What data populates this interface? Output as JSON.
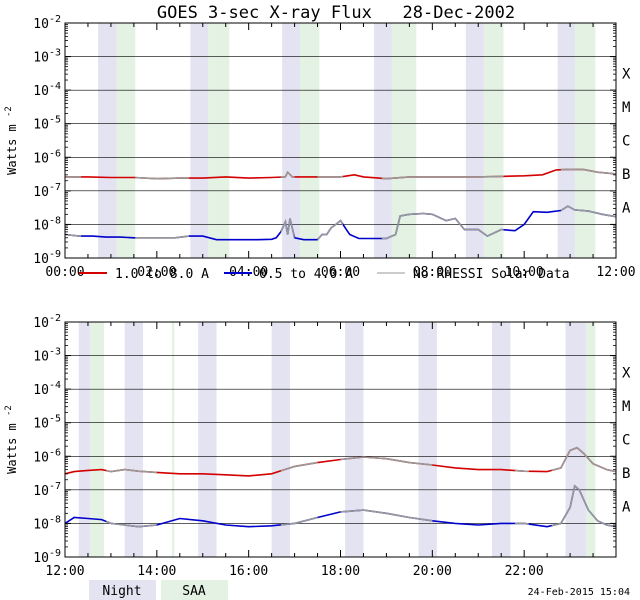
{
  "title": "GOES 3-sec X-ray Flux   28-Dec-2002",
  "ylabel": "Watts m",
  "ylabel_sup": "-2",
  "timestamp": "24-Feb-2015 15:04",
  "colors": {
    "long": "#d40000",
    "short": "#0000cc",
    "no_rhessi": "#999999",
    "night": "#e3e3f2",
    "saa": "#e3f2e3"
  },
  "legend": {
    "long": "1.0 to 8.0 A",
    "short": "0.5 to 4.0 A",
    "no_rhessi": "No RHESSI Solar Data",
    "night": "Night",
    "saa": "SAA"
  },
  "chart_data": [
    {
      "type": "line",
      "y_scale": "log",
      "ylim": [
        1e-09,
        0.01
      ],
      "xlim": [
        0,
        12
      ],
      "x_unit": "hours UT",
      "y_ticks": [
        "10-9",
        "10-8",
        "10-7",
        "10-6",
        "10-5",
        "10-4",
        "10-3",
        "10-2"
      ],
      "x_ticks": [
        "00:00",
        "02:00",
        "04:00",
        "06:00",
        "08:00",
        "10:00",
        "12:00"
      ],
      "class_labels": [
        "A",
        "B",
        "C",
        "M",
        "X"
      ],
      "night_bands": [
        [
          0.72,
          1.12
        ],
        [
          2.73,
          3.12
        ],
        [
          4.73,
          5.12
        ],
        [
          6.73,
          7.12
        ],
        [
          8.73,
          9.12
        ],
        [
          10.73,
          11.42
        ]
      ],
      "saa_bands": [
        [
          1.12,
          1.53
        ],
        [
          3.12,
          3.58
        ],
        [
          5.12,
          5.54
        ],
        [
          7.12,
          7.65
        ],
        [
          9.12,
          9.55
        ],
        [
          11.1,
          11.55
        ]
      ],
      "no_rhessi_ranges": [
        [
          0,
          0.35
        ],
        [
          1.53,
          2.7
        ],
        [
          4.7,
          5.0
        ],
        [
          5.5,
          6.05
        ],
        [
          6.9,
          9.55
        ],
        [
          10.8,
          12
        ]
      ],
      "series": [
        {
          "key": "long",
          "x": [
            0,
            0.5,
            1.0,
            1.5,
            2.0,
            2.5,
            3.0,
            3.5,
            4.0,
            4.5,
            4.8,
            4.85,
            4.95,
            5.2,
            5.5,
            6.0,
            6.3,
            6.5,
            7.0,
            7.5,
            8.0,
            8.5,
            9.0,
            9.5,
            10.0,
            10.4,
            10.7,
            11.0,
            11.3,
            11.6,
            12.0
          ],
          "y": [
            2.6e-07,
            2.6e-07,
            2.5e-07,
            2.5e-07,
            2.3e-07,
            2.4e-07,
            2.4e-07,
            2.6e-07,
            2.4e-07,
            2.5e-07,
            2.6e-07,
            3.6e-07,
            2.6e-07,
            2.6e-07,
            2.6e-07,
            2.6e-07,
            3e-07,
            2.6e-07,
            2.3e-07,
            2.6e-07,
            2.6e-07,
            2.6e-07,
            2.6e-07,
            2.7e-07,
            2.8e-07,
            3e-07,
            4.2e-07,
            4.4e-07,
            4.3e-07,
            3.6e-07,
            3.2e-07
          ]
        },
        {
          "key": "short",
          "x": [
            0,
            0.3,
            0.6,
            0.9,
            1.2,
            1.5,
            1.8,
            2.1,
            2.4,
            2.7,
            3.0,
            3.3,
            3.6,
            3.9,
            4.2,
            4.5,
            4.6,
            4.7,
            4.8,
            4.85,
            4.9,
            5.0,
            5.2,
            5.5,
            5.6,
            5.7,
            5.8,
            5.9,
            6.0,
            6.1,
            6.2,
            6.4,
            6.7,
            7.0,
            7.2,
            7.3,
            7.5,
            7.8,
            8.0,
            8.3,
            8.5,
            8.7,
            9.0,
            9.2,
            9.5,
            9.8,
            10.0,
            10.2,
            10.5,
            10.8,
            10.95,
            11.1,
            11.4,
            11.7,
            12.0
          ],
          "y": [
            5e-09,
            4.5e-09,
            4.5e-09,
            4.2e-09,
            4.2e-09,
            4e-09,
            4e-09,
            4e-09,
            4e-09,
            4.5e-09,
            4.5e-09,
            3.5e-09,
            3.5e-09,
            3.5e-09,
            3.5e-09,
            3.6e-09,
            4e-09,
            6e-09,
            1.2e-08,
            5e-09,
            1.5e-08,
            4e-09,
            3.5e-09,
            3.5e-09,
            5e-09,
            5e-09,
            8e-09,
            1e-08,
            1.3e-08,
            8e-09,
            5e-09,
            3.8e-09,
            3.8e-09,
            3.8e-09,
            5e-09,
            1.8e-08,
            2e-08,
            2.1e-08,
            2e-08,
            1.3e-08,
            1.5e-08,
            7e-09,
            7e-09,
            4.5e-09,
            7e-09,
            6.5e-09,
            1e-08,
            2.4e-08,
            2.3e-08,
            2.6e-08,
            3.5e-08,
            2.7e-08,
            2.5e-08,
            2e-08,
            1.7e-08
          ]
        }
      ]
    },
    {
      "type": "line",
      "y_scale": "log",
      "ylim": [
        1e-09,
        0.01
      ],
      "xlim": [
        12,
        24
      ],
      "x_unit": "hours UT",
      "y_ticks": [
        "10-9",
        "10-8",
        "10-7",
        "10-6",
        "10-5",
        "10-4",
        "10-3",
        "10-2"
      ],
      "x_ticks": [
        "12:00",
        "14:00",
        "16:00",
        "18:00",
        "20:00",
        "22:00"
      ],
      "class_labels": [
        "A",
        "B",
        "C",
        "M",
        "X"
      ],
      "night_bands": [
        [
          12.3,
          12.55
        ],
        [
          13.3,
          13.7
        ],
        [
          14.9,
          15.3
        ],
        [
          16.5,
          16.9
        ],
        [
          18.1,
          18.5
        ],
        [
          19.7,
          20.1
        ],
        [
          21.3,
          21.7
        ],
        [
          22.9,
          23.35
        ]
      ],
      "saa_bands": [
        [
          12.55,
          12.85
        ],
        [
          14.33,
          14.38
        ],
        [
          23.35,
          23.55
        ]
      ],
      "no_rhessi_ranges": [
        [
          12.9,
          14.0
        ],
        [
          16.7,
          17.5
        ],
        [
          18.0,
          20.0
        ],
        [
          21.8,
          22.1
        ],
        [
          22.6,
          24.0
        ]
      ],
      "series": [
        {
          "key": "long",
          "x": [
            12.0,
            12.2,
            12.5,
            12.8,
            13.0,
            13.3,
            13.6,
            14.0,
            14.5,
            15.0,
            15.5,
            16.0,
            16.5,
            17.0,
            17.5,
            18.0,
            18.5,
            19.0,
            19.5,
            20.0,
            20.5,
            21.0,
            21.5,
            22.0,
            22.5,
            22.8,
            23.0,
            23.15,
            23.3,
            23.5,
            23.8,
            24.0
          ],
          "y": [
            3e-07,
            3.5e-07,
            3.8e-07,
            4e-07,
            3.5e-07,
            4e-07,
            3.6e-07,
            3.3e-07,
            3e-07,
            3e-07,
            2.8e-07,
            2.6e-07,
            3e-07,
            5e-07,
            6.5e-07,
            8e-07,
            9.5e-07,
            8.5e-07,
            6.5e-07,
            5.5e-07,
            4.5e-07,
            4e-07,
            4e-07,
            3.6e-07,
            3.5e-07,
            4.5e-07,
            1.5e-06,
            1.8e-06,
            1.2e-06,
            6e-07,
            4e-07,
            3.5e-07
          ]
        },
        {
          "key": "short",
          "x": [
            12.0,
            12.2,
            12.5,
            12.8,
            13.0,
            13.3,
            13.6,
            14.0,
            14.5,
            15.0,
            15.5,
            16.0,
            16.5,
            17.0,
            17.5,
            18.0,
            18.5,
            19.0,
            19.5,
            20.0,
            20.5,
            21.0,
            21.5,
            22.0,
            22.5,
            22.8,
            23.0,
            23.1,
            23.2,
            23.4,
            23.6,
            23.8,
            24.0
          ],
          "y": [
            1e-08,
            1.5e-08,
            1.4e-08,
            1.3e-08,
            1e-08,
            9e-09,
            8e-09,
            9e-09,
            1.4e-08,
            1.2e-08,
            9e-09,
            8e-09,
            8.5e-09,
            1e-08,
            1.5e-08,
            2.2e-08,
            2.5e-08,
            2e-08,
            1.5e-08,
            1.2e-08,
            1e-08,
            9e-09,
            1e-08,
            1e-08,
            8e-09,
            1e-08,
            3e-08,
            1.3e-07,
            1e-07,
            2.5e-08,
            1.2e-08,
            9e-09,
            8e-09
          ]
        }
      ]
    }
  ]
}
